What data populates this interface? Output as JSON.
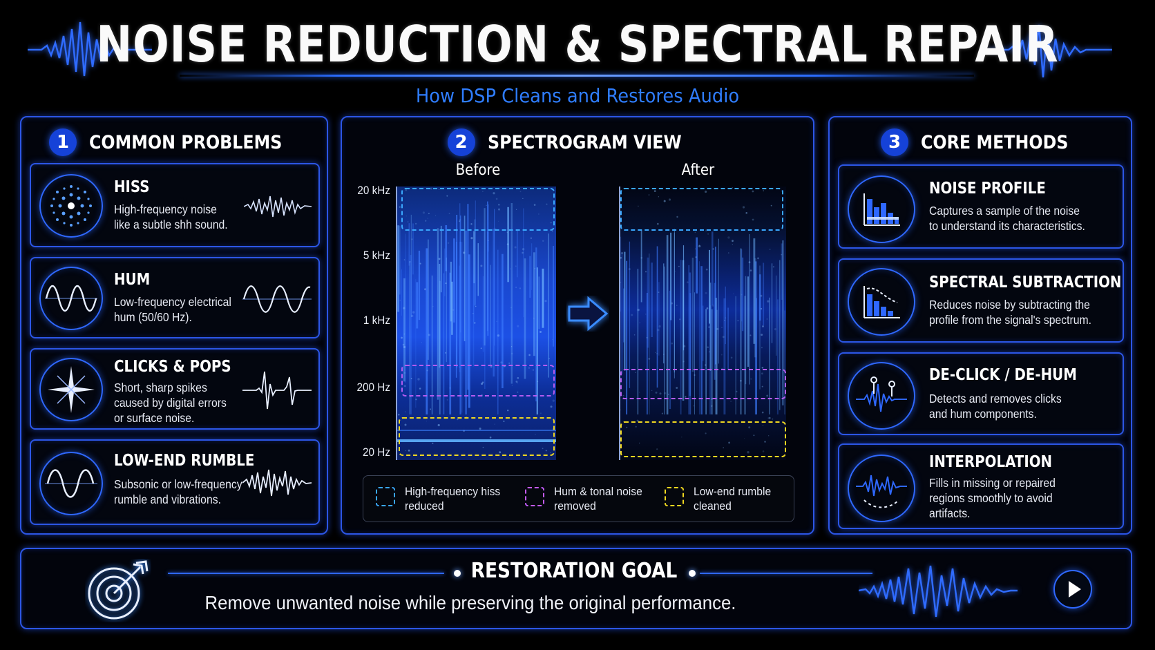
{
  "header": {
    "title": "NOISE REDUCTION & SPECTRAL REPAIR",
    "subtitle": "How DSP Cleans and Restores Audio"
  },
  "panels": {
    "problems": {
      "number": "1",
      "title": "COMMON PROBLEMS",
      "items": [
        {
          "title": "HISS",
          "desc": [
            "High-frequency noise",
            "like a subtle shh sound."
          ],
          "icon": "hiss-burst-icon"
        },
        {
          "title": "HUM",
          "desc": [
            "Low-frequency electrical",
            "hum (50/60 Hz)."
          ],
          "icon": "sine-wave-icon"
        },
        {
          "title": "CLICKS & POPS",
          "desc": [
            "Short, sharp spikes",
            "caused by digital errors",
            "or surface noise."
          ],
          "icon": "spark-icon"
        },
        {
          "title": "LOW-END RUMBLE",
          "desc": [
            "Subsonic or low-frequency",
            "rumble and vibrations."
          ],
          "icon": "low-wave-icon"
        }
      ]
    },
    "spectrogram": {
      "number": "2",
      "title": "SPECTROGRAM VIEW",
      "before_label": "Before",
      "after_label": "After",
      "axis": [
        "20 kHz",
        "5 kHz",
        "1 kHz",
        "200 Hz",
        "20 Hz"
      ],
      "legend": [
        {
          "text": [
            "High-frequency hiss",
            "reduced"
          ],
          "color": "#3aa8ff"
        },
        {
          "text": [
            "Hum & tonal noise",
            "removed"
          ],
          "color": "#c45cff"
        },
        {
          "text": [
            "Low-end rumble",
            "cleaned"
          ],
          "color": "#f0d820"
        }
      ]
    },
    "methods": {
      "number": "3",
      "title": "CORE METHODS",
      "items": [
        {
          "title": "NOISE PROFILE",
          "desc": [
            "Captures a sample of the noise",
            "to understand its characteristics."
          ],
          "icon": "bar-chart-icon"
        },
        {
          "title": "SPECTRAL SUBTRACTION",
          "desc": [
            "Reduces noise by subtracting the",
            "profile from the signal's spectrum."
          ],
          "icon": "subtraction-chart-icon"
        },
        {
          "title": "DE-CLICK / DE-HUM",
          "desc": [
            "Detects and removes clicks",
            "and hum components."
          ],
          "icon": "declick-wave-icon"
        },
        {
          "title": "INTERPOLATION",
          "desc": [
            "Fills in missing or repaired",
            "regions smoothly to avoid",
            "artifacts."
          ],
          "icon": "interpolation-wave-icon"
        }
      ]
    }
  },
  "goal": {
    "title": "RESTORATION GOAL",
    "text": "Remove unwanted noise while preserving the original performance.",
    "icon": "target-arrow-icon"
  }
}
